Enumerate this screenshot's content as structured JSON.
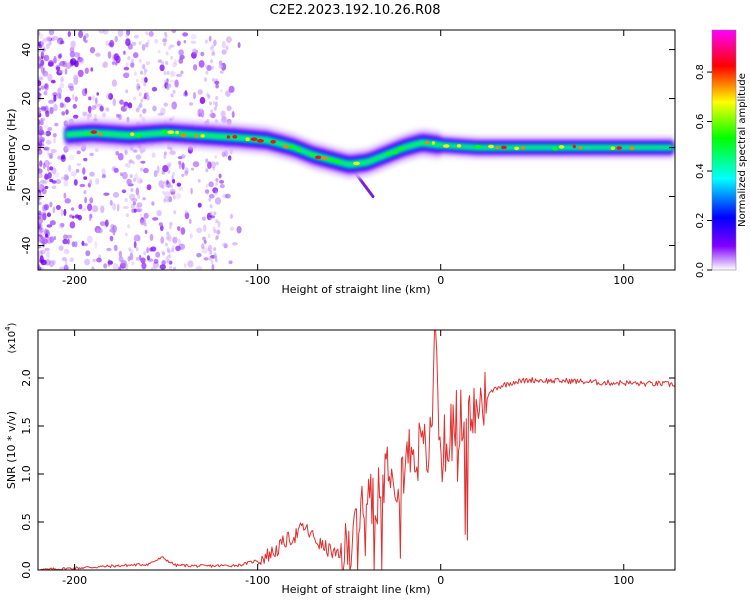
{
  "title": "C2E2.2023.192.10.26.R08",
  "chart_data": [
    {
      "type": "heatmap",
      "xlabel": "Height of straight line (km)",
      "ylabel": "Frequency (Hz)",
      "xlim": [
        -220,
        128
      ],
      "ylim": [
        -50,
        48
      ],
      "xticks": [
        -200,
        -100,
        0,
        100
      ],
      "xtick_labels": [
        "-200",
        "-100",
        "0",
        "100"
      ],
      "yticks": [
        -40,
        -20,
        0,
        20,
        40
      ],
      "ytick_labels": [
        "-40",
        "-20",
        "0",
        "20",
        "40"
      ],
      "ridge": [
        {
          "x": -210,
          "y": 5
        },
        {
          "x": -190,
          "y": 6
        },
        {
          "x": -170,
          "y": 5
        },
        {
          "x": -150,
          "y": 6
        },
        {
          "x": -130,
          "y": 5
        },
        {
          "x": -110,
          "y": 4
        },
        {
          "x": -95,
          "y": 3
        },
        {
          "x": -80,
          "y": 0
        },
        {
          "x": -70,
          "y": -3
        },
        {
          "x": -60,
          "y": -5
        },
        {
          "x": -50,
          "y": -7
        },
        {
          "x": -40,
          "y": -6
        },
        {
          "x": -30,
          "y": -3
        },
        {
          "x": -20,
          "y": 0
        },
        {
          "x": -10,
          "y": 2
        },
        {
          "x": 0,
          "y": 1
        },
        {
          "x": 20,
          "y": 0
        },
        {
          "x": 60,
          "y": 0
        },
        {
          "x": 100,
          "y": 0
        },
        {
          "x": 128,
          "y": 0
        }
      ],
      "colorbar": {
        "label": "Normalized spectral amplitude",
        "min": 0.0,
        "max": 0.97,
        "ticks": [
          0.0,
          0.2,
          0.4,
          0.6,
          0.8
        ],
        "tick_labels": [
          "0.0",
          "0.2",
          "0.4",
          "0.6",
          "0.8"
        ],
        "colors": [
          "#ffffff",
          "#8000ff",
          "#0000ff",
          "#00ffff",
          "#00ff00",
          "#ffff00",
          "#ff0000",
          "#ff00ff"
        ]
      }
    },
    {
      "type": "line",
      "xlabel": "Height of straight line (km)",
      "ylabel": "SNR (10 * v/v)",
      "y_multiplier_label": "(x10",
      "y_multiplier_exp": "4",
      "xlim": [
        -220,
        128
      ],
      "ylim": [
        0,
        2.5
      ],
      "xticks": [
        -200,
        -100,
        0,
        100
      ],
      "xtick_labels": [
        "-200",
        "-100",
        "0",
        "100"
      ],
      "yticks": [
        0.0,
        0.5,
        1.0,
        1.5,
        2.0
      ],
      "ytick_labels": [
        "0.0",
        "0.5",
        "1.0",
        "1.5",
        "2.0"
      ],
      "series": [
        {
          "color": "#e03030",
          "x": [
            -220,
            -200,
            -180,
            -160,
            -152,
            -145,
            -130,
            -110,
            -100,
            -90,
            -85,
            -80,
            -75,
            -70,
            -65,
            -60,
            -55,
            -50,
            -45,
            -40,
            -35,
            -30,
            -27,
            -25,
            -20,
            -15,
            -10,
            -5,
            -3,
            0,
            5,
            10,
            15,
            20,
            25,
            30,
            40,
            50,
            60,
            70,
            80,
            90,
            100,
            110,
            120,
            128
          ],
          "y": [
            0.0,
            0.02,
            0.04,
            0.06,
            0.13,
            0.05,
            0.04,
            0.05,
            0.1,
            0.2,
            0.3,
            0.35,
            0.45,
            0.35,
            0.25,
            0.2,
            0.12,
            0.2,
            0.55,
            0.85,
            0.8,
            1.1,
            1.2,
            1.0,
            1.1,
            1.3,
            1.2,
            1.3,
            2.4,
            1.2,
            1.4,
            1.6,
            1.5,
            1.7,
            1.8,
            1.9,
            1.96,
            1.98,
            1.97,
            1.97,
            1.96,
            1.95,
            1.95,
            1.94,
            1.94,
            1.93
          ]
        }
      ]
    }
  ]
}
